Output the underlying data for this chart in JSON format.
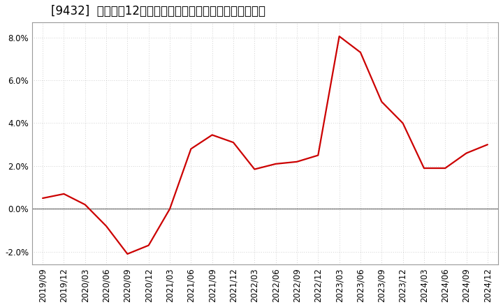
{
  "title": "[9432]  売上高の12か月移動合計の対前年同期増減率の推移",
  "x_labels": [
    "2019/09",
    "2019/12",
    "2020/03",
    "2020/06",
    "2020/09",
    "2020/12",
    "2021/03",
    "2021/06",
    "2021/09",
    "2021/12",
    "2022/03",
    "2022/06",
    "2022/09",
    "2022/12",
    "2023/03",
    "2023/06",
    "2023/09",
    "2023/12",
    "2024/03",
    "2024/06",
    "2024/09",
    "2024/12"
  ],
  "values": [
    0.5,
    0.7,
    0.2,
    -0.8,
    -2.1,
    -1.7,
    0.0,
    2.8,
    3.45,
    3.1,
    1.85,
    2.1,
    2.2,
    2.5,
    8.05,
    7.3,
    5.0,
    4.0,
    1.9,
    1.9,
    2.6,
    3.0
  ],
  "line_color": "#cc0000",
  "bg_color": "#ffffff",
  "plot_bg_color": "#ffffff",
  "grid_color": "#aaaaaa",
  "zero_line_color": "#666666",
  "ylim": [
    -2.6,
    8.7
  ],
  "yticks": [
    -2.0,
    0.0,
    2.0,
    4.0,
    6.0,
    8.0
  ],
  "title_fontsize": 12,
  "tick_fontsize": 8.5
}
